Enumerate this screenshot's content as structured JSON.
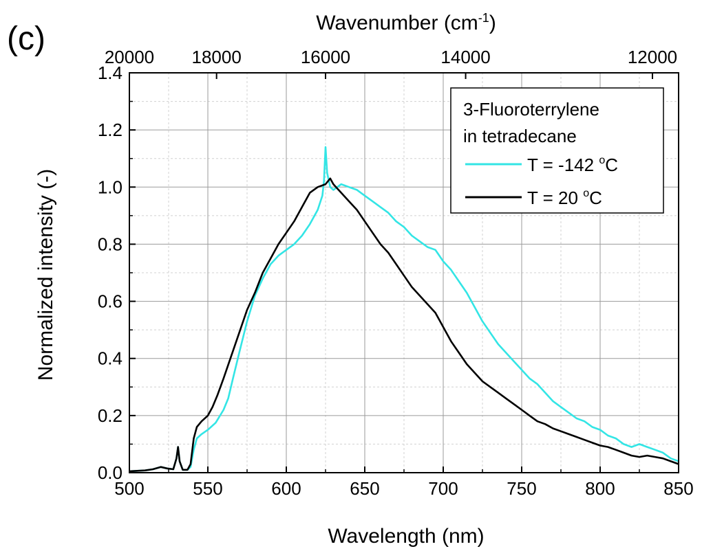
{
  "panel_label": "(c)",
  "chart_data": {
    "type": "line",
    "xlabel": "Wavelength (nm)",
    "x2label": {
      "base": "Wavenumber (cm",
      "sup": "-1",
      "close": ")"
    },
    "ylabel": "Normalized intensity (-)",
    "xlim": [
      500,
      850
    ],
    "ylim": [
      0,
      1.4
    ],
    "x_ticks": [
      500,
      550,
      600,
      650,
      700,
      750,
      800,
      850
    ],
    "y_ticks": [
      0.0,
      0.2,
      0.4,
      0.6,
      0.8,
      1.0,
      1.2,
      1.4
    ],
    "y_tick_labels": [
      "0.0",
      "0.2",
      "0.4",
      "0.6",
      "0.8",
      "1.0",
      "1.2",
      "1.4"
    ],
    "top_ticks": [
      20000,
      18000,
      16000,
      14000,
      12000
    ],
    "grid": true,
    "legend": {
      "position": "top-right",
      "title_lines": [
        "3-Fluoroterrylene",
        "in tetradecane"
      ]
    },
    "series": [
      {
        "name": "T = -142 °C",
        "label_parts": {
          "main": "T = -142 ",
          "sup": "o",
          "end": "C"
        },
        "color": "#33E5E5",
        "points": [
          [
            500,
            0.005
          ],
          [
            510,
            0.008
          ],
          [
            515,
            0.012
          ],
          [
            520,
            0.02
          ],
          [
            524,
            0.015
          ],
          [
            528,
            0.012
          ],
          [
            530,
            0.05
          ],
          [
            531,
            0.09
          ],
          [
            532,
            0.04
          ],
          [
            534,
            0.01
          ],
          [
            537,
            0.01
          ],
          [
            539,
            0.02
          ],
          [
            541,
            0.08
          ],
          [
            543,
            0.12
          ],
          [
            546,
            0.135
          ],
          [
            550,
            0.15
          ],
          [
            555,
            0.175
          ],
          [
            560,
            0.22
          ],
          [
            563,
            0.26
          ],
          [
            566,
            0.33
          ],
          [
            570,
            0.42
          ],
          [
            575,
            0.53
          ],
          [
            580,
            0.62
          ],
          [
            585,
            0.68
          ],
          [
            590,
            0.73
          ],
          [
            595,
            0.76
          ],
          [
            600,
            0.78
          ],
          [
            605,
            0.8
          ],
          [
            610,
            0.83
          ],
          [
            615,
            0.87
          ],
          [
            620,
            0.92
          ],
          [
            623,
            0.97
          ],
          [
            624,
            1.02
          ],
          [
            625,
            1.14
          ],
          [
            626,
            1.05
          ],
          [
            628,
            1.0
          ],
          [
            630,
            0.99
          ],
          [
            635,
            1.01
          ],
          [
            640,
            1.0
          ],
          [
            645,
            0.99
          ],
          [
            650,
            0.97
          ],
          [
            655,
            0.95
          ],
          [
            660,
            0.93
          ],
          [
            665,
            0.91
          ],
          [
            670,
            0.88
          ],
          [
            675,
            0.86
          ],
          [
            680,
            0.83
          ],
          [
            685,
            0.81
          ],
          [
            690,
            0.79
          ],
          [
            695,
            0.78
          ],
          [
            700,
            0.74
          ],
          [
            705,
            0.71
          ],
          [
            710,
            0.67
          ],
          [
            715,
            0.63
          ],
          [
            720,
            0.58
          ],
          [
            725,
            0.53
          ],
          [
            730,
            0.49
          ],
          [
            735,
            0.45
          ],
          [
            740,
            0.42
          ],
          [
            745,
            0.39
          ],
          [
            750,
            0.36
          ],
          [
            755,
            0.33
          ],
          [
            760,
            0.31
          ],
          [
            765,
            0.28
          ],
          [
            770,
            0.25
          ],
          [
            775,
            0.23
          ],
          [
            780,
            0.21
          ],
          [
            785,
            0.19
          ],
          [
            790,
            0.18
          ],
          [
            795,
            0.16
          ],
          [
            800,
            0.15
          ],
          [
            805,
            0.13
          ],
          [
            810,
            0.12
          ],
          [
            815,
            0.1
          ],
          [
            820,
            0.09
          ],
          [
            825,
            0.1
          ],
          [
            830,
            0.09
          ],
          [
            835,
            0.08
          ],
          [
            840,
            0.07
          ],
          [
            845,
            0.05
          ],
          [
            850,
            0.04
          ]
        ]
      },
      {
        "name": "T = 20 °C",
        "label_parts": {
          "main": "T = 20 ",
          "sup": "o",
          "end": "C"
        },
        "color": "#000000",
        "points": [
          [
            500,
            0.005
          ],
          [
            510,
            0.008
          ],
          [
            515,
            0.012
          ],
          [
            520,
            0.02
          ],
          [
            524,
            0.015
          ],
          [
            528,
            0.012
          ],
          [
            530,
            0.05
          ],
          [
            531,
            0.09
          ],
          [
            532,
            0.04
          ],
          [
            534,
            0.01
          ],
          [
            537,
            0.01
          ],
          [
            539,
            0.03
          ],
          [
            541,
            0.12
          ],
          [
            543,
            0.16
          ],
          [
            546,
            0.18
          ],
          [
            550,
            0.2
          ],
          [
            553,
            0.23
          ],
          [
            556,
            0.27
          ],
          [
            560,
            0.33
          ],
          [
            565,
            0.41
          ],
          [
            570,
            0.49
          ],
          [
            575,
            0.57
          ],
          [
            580,
            0.63
          ],
          [
            585,
            0.7
          ],
          [
            590,
            0.75
          ],
          [
            595,
            0.8
          ],
          [
            600,
            0.84
          ],
          [
            605,
            0.88
          ],
          [
            610,
            0.93
          ],
          [
            615,
            0.98
          ],
          [
            620,
            1.0
          ],
          [
            625,
            1.01
          ],
          [
            628,
            1.03
          ],
          [
            630,
            1.01
          ],
          [
            635,
            0.98
          ],
          [
            640,
            0.95
          ],
          [
            645,
            0.92
          ],
          [
            650,
            0.88
          ],
          [
            655,
            0.84
          ],
          [
            660,
            0.8
          ],
          [
            665,
            0.77
          ],
          [
            670,
            0.73
          ],
          [
            675,
            0.69
          ],
          [
            680,
            0.65
          ],
          [
            685,
            0.62
          ],
          [
            690,
            0.59
          ],
          [
            695,
            0.56
          ],
          [
            700,
            0.51
          ],
          [
            705,
            0.46
          ],
          [
            710,
            0.42
          ],
          [
            715,
            0.38
          ],
          [
            720,
            0.35
          ],
          [
            725,
            0.32
          ],
          [
            730,
            0.3
          ],
          [
            735,
            0.28
          ],
          [
            740,
            0.26
          ],
          [
            745,
            0.24
          ],
          [
            750,
            0.22
          ],
          [
            755,
            0.2
          ],
          [
            760,
            0.18
          ],
          [
            765,
            0.17
          ],
          [
            770,
            0.155
          ],
          [
            775,
            0.145
          ],
          [
            780,
            0.135
          ],
          [
            785,
            0.125
          ],
          [
            790,
            0.115
          ],
          [
            795,
            0.105
          ],
          [
            800,
            0.095
          ],
          [
            805,
            0.09
          ],
          [
            810,
            0.08
          ],
          [
            815,
            0.07
          ],
          [
            820,
            0.06
          ],
          [
            825,
            0.055
          ],
          [
            830,
            0.06
          ],
          [
            835,
            0.055
          ],
          [
            840,
            0.05
          ],
          [
            845,
            0.04
          ],
          [
            850,
            0.03
          ]
        ]
      }
    ]
  }
}
